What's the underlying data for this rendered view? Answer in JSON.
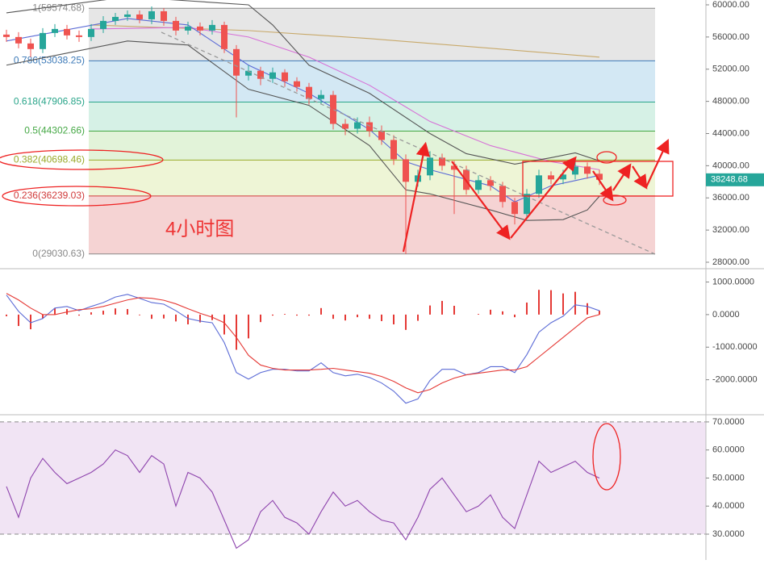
{
  "chart_data": [
    {
      "type": "candlestick",
      "annotation": "4小时图",
      "up_color": "#26a69a",
      "down_color": "#ef5350",
      "open": [
        56300,
        56000,
        55200,
        54500,
        56500,
        57000,
        56200,
        56000,
        57000,
        58000,
        58500,
        58800,
        58200,
        59200,
        58000,
        56800,
        57300,
        56800,
        57500,
        54500,
        51200,
        51800,
        50800,
        51600,
        50500,
        49800,
        48300,
        48800,
        45200,
        44600,
        45400,
        44300,
        43200,
        40800,
        38000,
        38800,
        41000,
        40000,
        39500,
        37000,
        38200,
        37500,
        35500,
        34000,
        36500,
        38800,
        38300,
        38900,
        39900,
        39000
      ],
      "high": [
        56900,
        56600,
        55800,
        57100,
        57600,
        57500,
        56800,
        57600,
        58600,
        59000,
        59300,
        59300,
        59800,
        59600,
        58500,
        57900,
        57800,
        58100,
        57900,
        55000,
        52500,
        52300,
        52200,
        52000,
        51000,
        50300,
        49400,
        49300,
        45800,
        46000,
        46100,
        45000,
        43800,
        41400,
        39500,
        41800,
        41500,
        40600,
        40000,
        38800,
        38700,
        38000,
        36000,
        37100,
        39500,
        39300,
        39500,
        40600,
        40400,
        39500
      ],
      "low": [
        55400,
        54600,
        53500,
        54000,
        56000,
        55700,
        55400,
        55500,
        56500,
        57500,
        58000,
        57700,
        57600,
        57400,
        56200,
        56300,
        56200,
        56300,
        54000,
        46000,
        50600,
        50000,
        50300,
        49800,
        49200,
        47600,
        47700,
        44500,
        43800,
        44000,
        43600,
        42600,
        40100,
        29030,
        37400,
        38200,
        39400,
        34000,
        36400,
        36500,
        36900,
        34800,
        32700,
        33500,
        36000,
        37700,
        37700,
        38300,
        38400,
        37600
      ],
      "close": [
        56000,
        55200,
        54500,
        56500,
        57000,
        56200,
        56000,
        57000,
        58000,
        58500,
        58800,
        58200,
        59200,
        58000,
        56800,
        57300,
        56800,
        57500,
        54500,
        51200,
        51800,
        50800,
        51600,
        50500,
        49800,
        48300,
        48800,
        45200,
        44600,
        45400,
        44300,
        43200,
        40800,
        38000,
        38800,
        41000,
        40000,
        39500,
        37000,
        38200,
        37500,
        35500,
        34000,
        36500,
        38800,
        38300,
        38900,
        39900,
        39000,
        38250
      ],
      "overlays": [
        {
          "color": "#c8a96a",
          "x": [
            7,
            20,
            30,
            40,
            49
          ],
          "values": [
            57500,
            56800,
            55800,
            54600,
            53500
          ]
        },
        {
          "color": "#d770d7",
          "x": [
            7,
            15,
            20,
            25,
            30,
            35,
            40,
            45,
            49
          ],
          "values": [
            57000,
            57200,
            56000,
            53500,
            50000,
            45500,
            42500,
            40500,
            39500
          ]
        },
        {
          "color": "#555555",
          "x": [
            0,
            5,
            10,
            15,
            20,
            22,
            25,
            30,
            35,
            38,
            42,
            45,
            47,
            49
          ],
          "values": [
            59000,
            60000,
            61000,
            60500,
            60000,
            57500,
            52500,
            49000,
            44000,
            41500,
            40200,
            41000,
            41600,
            40600
          ]
        },
        {
          "color": "#555555",
          "x": [
            0,
            5,
            10,
            15,
            20,
            25,
            30,
            33,
            35,
            40,
            43,
            46,
            48,
            49
          ],
          "values": [
            52500,
            54000,
            55500,
            55000,
            49500,
            47500,
            42500,
            37000,
            36500,
            34500,
            33200,
            33300,
            34500,
            36200
          ]
        },
        {
          "color": "#5b6bd6",
          "x": [
            0,
            10,
            15,
            20,
            25,
            30,
            33,
            35,
            40,
            42,
            45,
            49
          ],
          "values": [
            55500,
            58300,
            57500,
            52500,
            49000,
            44500,
            40500,
            39500,
            37500,
            35500,
            37500,
            38800
          ]
        }
      ],
      "fib_levels": [
        {
          "label": "1(59574.68)",
          "value": 59574.68,
          "color": "#888888",
          "band": "#e6e6e6"
        },
        {
          "label": "0.786(53038.25)",
          "value": 53038.25,
          "color": "#3d7ab8",
          "band": "#d3e8f4"
        },
        {
          "label": "0.618(47906.85)",
          "value": 47906.85,
          "color": "#2aa58a",
          "band": "#d6f1e6"
        },
        {
          "label": "0.5(44302.66)",
          "value": 44302.66,
          "color": "#45a845",
          "band": "#e2f3d9"
        },
        {
          "label": "0.382(40698.46)",
          "value": 40698.46,
          "color": "#9aaa2a",
          "band": "#eef5d6"
        },
        {
          "label": "0.236(36239.03)",
          "value": 36239.03,
          "color": "#d03a3a",
          "band": "#f5d3d3"
        },
        {
          "label": "0(29030.63)",
          "value": 29030.63,
          "color": "#888888"
        }
      ],
      "last_price": 38248.68,
      "ylim": [
        27500,
        60600
      ],
      "yticks": [
        {
          "value": 28000,
          "label": "28000.00"
        },
        {
          "value": 32000,
          "label": "32000.00"
        },
        {
          "value": 36000,
          "label": "36000.00"
        },
        {
          "value": 40000,
          "label": "40000.00"
        },
        {
          "value": 44000,
          "label": "44000.00"
        },
        {
          "value": 48000,
          "label": "48000.00"
        },
        {
          "value": 52000,
          "label": "52000.00"
        },
        {
          "value": 56000,
          "label": "56000.00"
        },
        {
          "value": 60000,
          "label": "60000.00"
        }
      ]
    },
    {
      "type": "macd",
      "series": [
        {
          "color": "#5b6bd6",
          "values": [
            600,
            100,
            -250,
            -120,
            200,
            250,
            120,
            250,
            370,
            540,
            620,
            500,
            370,
            320,
            120,
            -120,
            -200,
            -250,
            -860,
            -1780,
            -1980,
            -1780,
            -1680,
            -1680,
            -1730,
            -1730,
            -1480,
            -1780,
            -1880,
            -1830,
            -1930,
            -2100,
            -2350,
            -2720,
            -2590,
            -2020,
            -1680,
            -1680,
            -1850,
            -1780,
            -1600,
            -1600,
            -1780,
            -1230,
            -540,
            -250,
            -50,
            300,
            250,
            120
          ]
        },
        {
          "color": "#e53935",
          "values": [
            650,
            450,
            200,
            0,
            0,
            80,
            150,
            180,
            250,
            350,
            450,
            520,
            500,
            440,
            330,
            180,
            40,
            -80,
            -250,
            -700,
            -1250,
            -1550,
            -1650,
            -1700,
            -1700,
            -1700,
            -1680,
            -1650,
            -1700,
            -1750,
            -1800,
            -1900,
            -2050,
            -2250,
            -2400,
            -2300,
            -2100,
            -1950,
            -1850,
            -1800,
            -1750,
            -1700,
            -1700,
            -1600,
            -1300,
            -1000,
            -700,
            -400,
            -100,
            0
          ]
        }
      ],
      "histogram": {
        "color": "#e53935",
        "values": [
          -50,
          -350,
          -450,
          -120,
          200,
          170,
          -30,
          70,
          120,
          190,
          170,
          -20,
          -130,
          -120,
          -210,
          -300,
          -240,
          -170,
          -610,
          -1080,
          -730,
          -230,
          -30,
          20,
          -30,
          -30,
          200,
          -130,
          -180,
          -80,
          -130,
          -200,
          -300,
          -470,
          -190,
          280,
          420,
          270,
          0,
          20,
          150,
          100,
          -80,
          370,
          760,
          750,
          650,
          700,
          350,
          120
        ]
      },
      "ylim": [
        -3000,
        1360
      ],
      "yticks": [
        {
          "value": 1000,
          "label": "1000.0000"
        },
        {
          "value": 0,
          "label": "0.0000"
        },
        {
          "value": -1000,
          "label": "-1000.0000"
        },
        {
          "value": -2000,
          "label": "-2000.0000"
        }
      ]
    },
    {
      "type": "line",
      "series": [
        {
          "color": "#8e44ad",
          "values": [
            47,
            36,
            50,
            57,
            52,
            48,
            50,
            52,
            55,
            60,
            58,
            52,
            58,
            55,
            40,
            52,
            50,
            45,
            35,
            25,
            28,
            38,
            42,
            36,
            34,
            30,
            38,
            45,
            40,
            42,
            38,
            35,
            34,
            28,
            36,
            46,
            50,
            44,
            38,
            40,
            44,
            36,
            32,
            44,
            56,
            52,
            54,
            56,
            52,
            50
          ]
        }
      ],
      "band": [
        30,
        70
      ],
      "band_color": "#f1e4f4",
      "ylim": [
        20.8,
        71.7
      ],
      "yticks": [
        {
          "value": 70,
          "label": "70.0000"
        },
        {
          "value": 60,
          "label": "60.0000"
        },
        {
          "value": 50,
          "label": "50.0000"
        },
        {
          "value": 40,
          "label": "40.0000"
        },
        {
          "value": 30,
          "label": "30.0000"
        }
      ]
    }
  ]
}
